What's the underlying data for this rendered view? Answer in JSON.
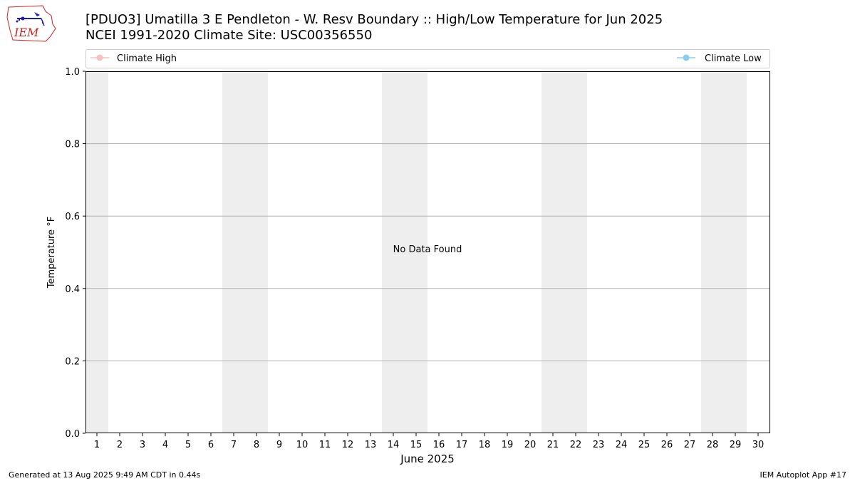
{
  "title": {
    "line1": "[PDUO3] Umatilla 3 E Pendleton - W. Resv Boundary :: High/Low Temperature for Jun 2025",
    "line2": "NCEI 1991-2020 Climate Site: USC00356550"
  },
  "logo": {
    "text": "IEM"
  },
  "footer": {
    "generated": "Generated at 13 Aug 2025 9:49 AM CDT in 0.44s",
    "app": "IEM Autoplot App #17"
  },
  "colors": {
    "climate_high": "#f4c2c2",
    "climate_low": "#87ceeb",
    "weekend_band": "#eeeeee",
    "grid": "#b0b0b0"
  },
  "chart_data": {
    "type": "line",
    "xlabel": "June 2025",
    "ylabel": "Temperature °F",
    "x_ticks": [
      "1",
      "2",
      "3",
      "4",
      "5",
      "6",
      "7",
      "8",
      "9",
      "10",
      "11",
      "12",
      "13",
      "14",
      "15",
      "16",
      "17",
      "18",
      "19",
      "20",
      "21",
      "22",
      "23",
      "24",
      "25",
      "26",
      "27",
      "28",
      "29",
      "30"
    ],
    "xlim": [
      0.5,
      30.5
    ],
    "ylim": [
      0.0,
      1.0
    ],
    "y_ticks": [
      "0.0",
      "0.2",
      "0.4",
      "0.6",
      "0.8",
      "1.0"
    ],
    "grid": "horizontal",
    "legend": [
      {
        "name": "Climate High",
        "placement": "top-left"
      },
      {
        "name": "Climate Low",
        "placement": "top-right"
      }
    ],
    "series": [
      {
        "name": "Climate High",
        "values": []
      },
      {
        "name": "Climate Low",
        "values": []
      }
    ],
    "shaded_days": [
      [
        1,
        1
      ],
      [
        7,
        8
      ],
      [
        14,
        15
      ],
      [
        21,
        22
      ],
      [
        28,
        29
      ]
    ],
    "annotation": "No Data Found"
  }
}
